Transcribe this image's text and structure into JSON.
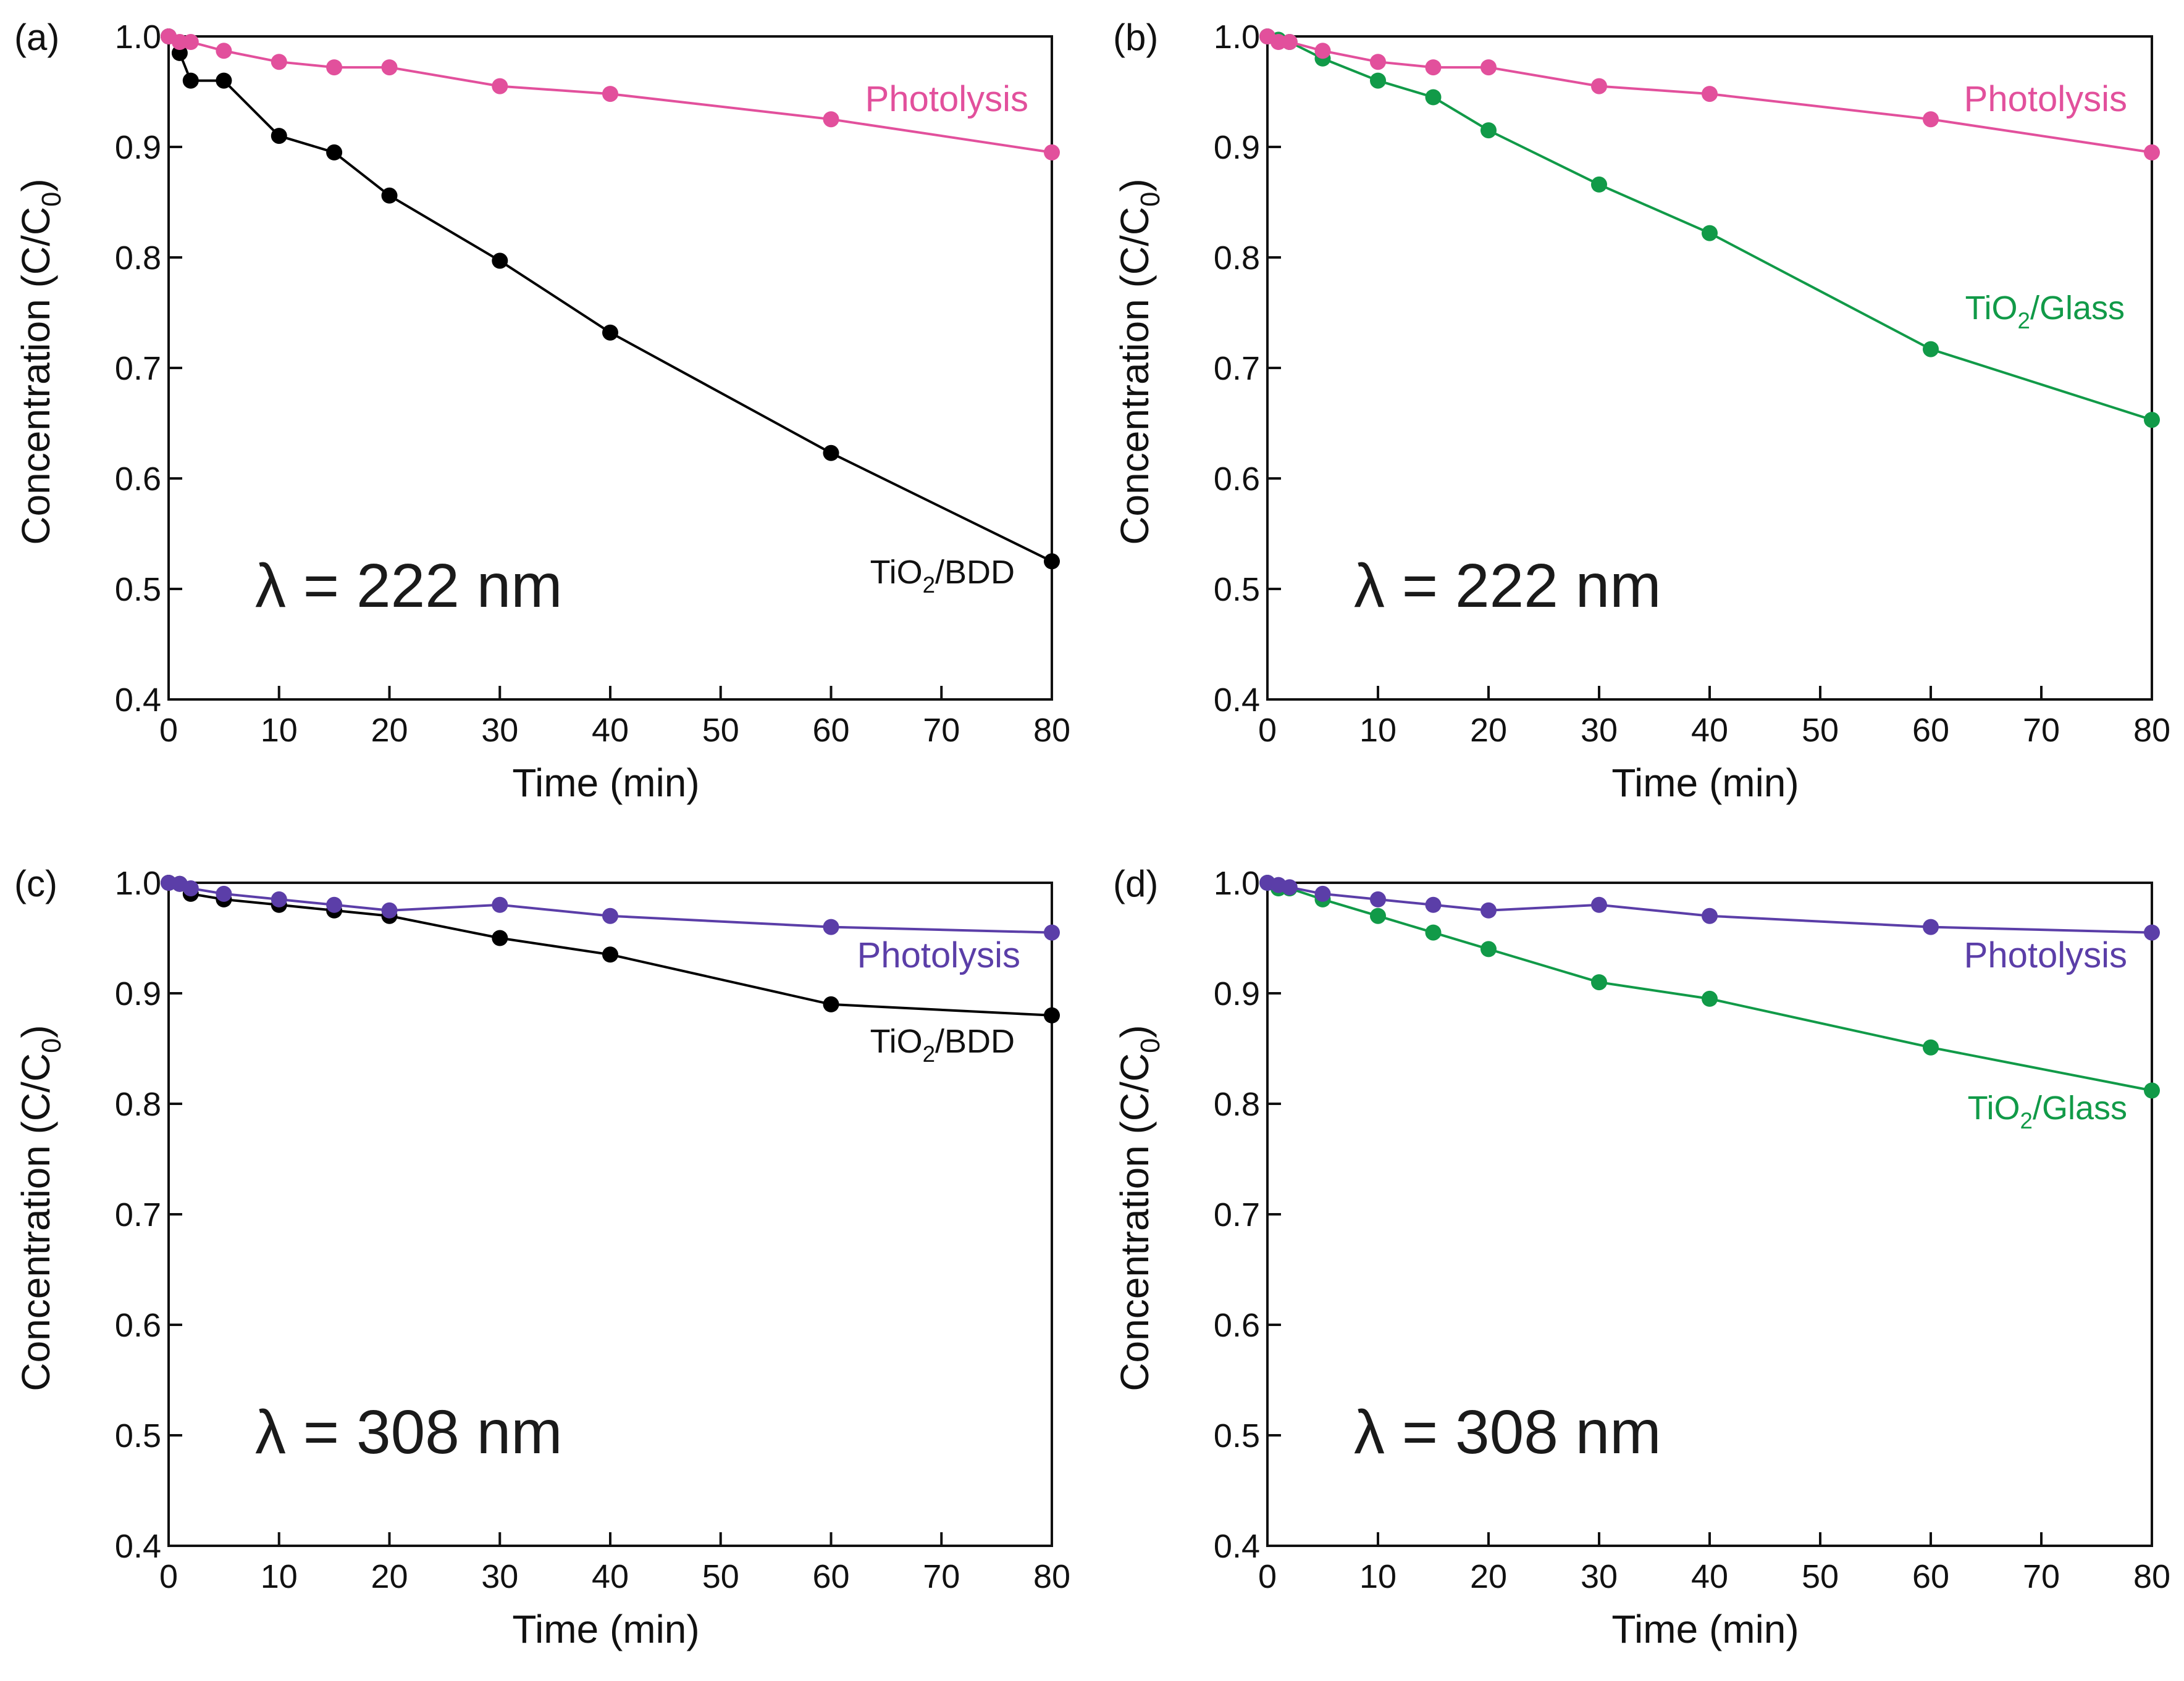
{
  "chart_data": [
    {
      "panel_label": "(a)",
      "type": "line",
      "wavelength_label": "λ = 222 nm",
      "xlabel": "Time (min)",
      "ylabel": {
        "main": "Concentration (C/C",
        "sub": "0",
        "end": ")"
      },
      "xlim": [
        0,
        80
      ],
      "ylim": [
        0.4,
        1.0
      ],
      "xticks": [
        "0",
        "10",
        "20",
        "30",
        "40",
        "50",
        "60",
        "70",
        "80"
      ],
      "yticks": [
        "0.4",
        "0.5",
        "0.6",
        "0.7",
        "0.8",
        "0.9",
        "1.0"
      ],
      "series": [
        {
          "name": "Photolysis",
          "color": "#e2509c",
          "label": {
            "main": "Photolysis",
            "sub": "",
            "end": ""
          },
          "x": [
            0,
            1,
            2,
            5,
            10,
            15,
            20,
            30,
            40,
            60,
            80
          ],
          "values": [
            1.0,
            0.995,
            0.995,
            0.987,
            0.977,
            0.972,
            0.972,
            0.955,
            0.948,
            0.925,
            0.895
          ]
        },
        {
          "name": "TiO2/BDD",
          "color": "#000000",
          "label": {
            "main": "TiO",
            "sub": "2",
            "end": "/BDD"
          },
          "x": [
            0,
            1,
            2,
            5,
            10,
            15,
            20,
            30,
            40,
            60,
            80
          ],
          "values": [
            1.0,
            0.985,
            0.96,
            0.96,
            0.91,
            0.895,
            0.856,
            0.797,
            0.732,
            0.623,
            0.525
          ]
        }
      ]
    },
    {
      "panel_label": "(b)",
      "type": "line",
      "wavelength_label": "λ = 222 nm",
      "xlabel": "Time (min)",
      "ylabel": {
        "main": "Concentration (C/C",
        "sub": "0",
        "end": ")"
      },
      "xlim": [
        0,
        80
      ],
      "ylim": [
        0.4,
        1.0
      ],
      "xticks": [
        "0",
        "10",
        "20",
        "30",
        "40",
        "50",
        "60",
        "70",
        "80"
      ],
      "yticks": [
        "0.4",
        "0.5",
        "0.6",
        "0.7",
        "0.8",
        "0.9",
        "1.0"
      ],
      "series": [
        {
          "name": "Photolysis",
          "color": "#e2509c",
          "label": {
            "main": "Photolysis",
            "sub": "",
            "end": ""
          },
          "x": [
            0,
            1,
            2,
            5,
            10,
            15,
            20,
            30,
            40,
            60,
            80
          ],
          "values": [
            1.0,
            0.995,
            0.995,
            0.987,
            0.977,
            0.972,
            0.972,
            0.955,
            0.948,
            0.925,
            0.895
          ]
        },
        {
          "name": "TiO2/Glass",
          "color": "#119a48",
          "label": {
            "main": "TiO",
            "sub": "2",
            "end": "/Glass"
          },
          "x": [
            0,
            1,
            2,
            5,
            10,
            15,
            20,
            30,
            40,
            60,
            80
          ],
          "values": [
            1.0,
            0.997,
            0.995,
            0.98,
            0.96,
            0.945,
            0.915,
            0.866,
            0.822,
            0.717,
            0.653
          ]
        }
      ]
    },
    {
      "panel_label": "(c)",
      "type": "line",
      "wavelength_label": "λ = 308 nm",
      "xlabel": "Time (min)",
      "ylabel": {
        "main": "Concentration (C/C",
        "sub": "0",
        "end": ")"
      },
      "xlim": [
        0,
        80
      ],
      "ylim": [
        0.4,
        1.0
      ],
      "xticks": [
        "0",
        "10",
        "20",
        "30",
        "40",
        "50",
        "60",
        "70",
        "80"
      ],
      "yticks": [
        "0.4",
        "0.5",
        "0.6",
        "0.7",
        "0.8",
        "0.9",
        "1.0"
      ],
      "series": [
        {
          "name": "Photolysis",
          "color": "#5b3ea8",
          "label": {
            "main": "Photolysis",
            "sub": "",
            "end": ""
          },
          "x": [
            0,
            1,
            2,
            5,
            10,
            15,
            20,
            30,
            40,
            60,
            80
          ],
          "values": [
            1.0,
            0.999,
            0.995,
            0.99,
            0.985,
            0.98,
            0.975,
            0.98,
            0.97,
            0.96,
            0.955
          ]
        },
        {
          "name": "TiO2/BDD",
          "color": "#000000",
          "label": {
            "main": "TiO",
            "sub": "2",
            "end": "/BDD"
          },
          "x": [
            0,
            1,
            2,
            5,
            10,
            15,
            20,
            30,
            40,
            60,
            80
          ],
          "values": [
            1.0,
            0.999,
            0.99,
            0.985,
            0.98,
            0.975,
            0.97,
            0.95,
            0.935,
            0.89,
            0.88
          ]
        }
      ]
    },
    {
      "panel_label": "(d)",
      "type": "line",
      "wavelength_label": "λ = 308 nm",
      "xlabel": "Time (min)",
      "ylabel": {
        "main": "Concentration (C/C",
        "sub": "0",
        "end": ")"
      },
      "xlim": [
        0,
        80
      ],
      "ylim": [
        0.4,
        1.0
      ],
      "xticks": [
        "0",
        "10",
        "20",
        "30",
        "40",
        "50",
        "60",
        "70",
        "80"
      ],
      "yticks": [
        "0.4",
        "0.5",
        "0.6",
        "0.7",
        "0.8",
        "0.9",
        "1.0"
      ],
      "series": [
        {
          "name": "Photolysis",
          "color": "#5b3ea8",
          "label": {
            "main": "Photolysis",
            "sub": "",
            "end": ""
          },
          "x": [
            0,
            1,
            2,
            5,
            10,
            15,
            20,
            30,
            40,
            60,
            80
          ],
          "values": [
            1.0,
            0.998,
            0.996,
            0.99,
            0.985,
            0.98,
            0.975,
            0.98,
            0.97,
            0.96,
            0.955
          ]
        },
        {
          "name": "TiO2/Glass",
          "color": "#119a48",
          "label": {
            "main": "TiO",
            "sub": "2",
            "end": "/Glass"
          },
          "x": [
            0,
            1,
            2,
            5,
            10,
            15,
            20,
            30,
            40,
            60,
            80
          ],
          "values": [
            1.0,
            0.995,
            0.995,
            0.985,
            0.97,
            0.955,
            0.94,
            0.91,
            0.895,
            0.851,
            0.812
          ]
        }
      ]
    }
  ]
}
